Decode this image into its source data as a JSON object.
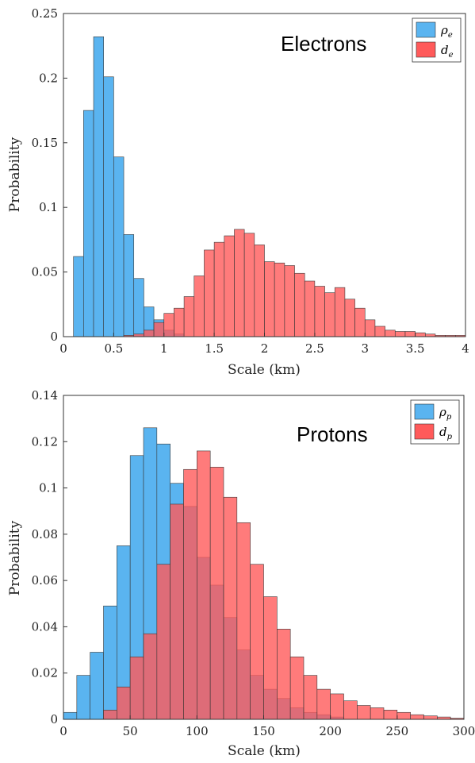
{
  "chart_data": [
    {
      "type": "bar",
      "annotation": "Electrons",
      "xlabel": "Scale (km)",
      "ylabel": "Probability",
      "xlim": [
        0,
        4
      ],
      "ylim": [
        0,
        0.25
      ],
      "xticks": [
        "0",
        "0.5",
        "1",
        "1.5",
        "2",
        "2.5",
        "3",
        "3.5",
        "4"
      ],
      "yticks": [
        "0",
        "0.05",
        "0.1",
        "0.15",
        "0.2",
        "0.25"
      ],
      "bin_width": 0.1,
      "legend_position": "top-right",
      "series": [
        {
          "name": "ρe",
          "label_base": "ρ",
          "label_sub": "e",
          "color": "#5AB4F0",
          "x": [
            0.1,
            0.2,
            0.3,
            0.4,
            0.5,
            0.6,
            0.7,
            0.8,
            0.9,
            1.0,
            1.1
          ],
          "values": [
            0.062,
            0.175,
            0.232,
            0.201,
            0.139,
            0.079,
            0.045,
            0.023,
            0.013,
            0.005,
            0.002
          ]
        },
        {
          "name": "de",
          "label_base": "d",
          "label_sub": "e",
          "color": "#FF5A5A",
          "x": [
            0.6,
            0.7,
            0.8,
            0.9,
            1.0,
            1.1,
            1.2,
            1.3,
            1.4,
            1.5,
            1.6,
            1.7,
            1.8,
            1.9,
            2.0,
            2.1,
            2.2,
            2.3,
            2.4,
            2.5,
            2.6,
            2.7,
            2.8,
            2.9,
            3.0,
            3.1,
            3.2,
            3.3,
            3.4,
            3.5,
            3.6,
            3.7,
            3.8,
            3.9
          ],
          "values": [
            0.001,
            0.002,
            0.005,
            0.011,
            0.018,
            0.022,
            0.031,
            0.047,
            0.067,
            0.073,
            0.078,
            0.083,
            0.08,
            0.071,
            0.058,
            0.057,
            0.055,
            0.049,
            0.043,
            0.039,
            0.034,
            0.038,
            0.029,
            0.022,
            0.013,
            0.008,
            0.005,
            0.004,
            0.004,
            0.003,
            0.002,
            0.001,
            0.001,
            0.001
          ]
        }
      ]
    },
    {
      "type": "bar",
      "annotation": "Protons",
      "xlabel": "Scale (km)",
      "ylabel": "Probability",
      "xlim": [
        0,
        300
      ],
      "ylim": [
        0,
        0.14
      ],
      "xticks": [
        "0",
        "50",
        "100",
        "150",
        "200",
        "250",
        "300"
      ],
      "yticks": [
        "0",
        "0.02",
        "0.04",
        "0.06",
        "0.08",
        "0.1",
        "0.12",
        "0.14"
      ],
      "bin_width": 10,
      "legend_position": "top-right",
      "series": [
        {
          "name": "ρp",
          "label_base": "ρ",
          "label_sub": "p",
          "color": "#5AB4F0",
          "x": [
            0,
            10,
            20,
            30,
            40,
            50,
            60,
            70,
            80,
            90,
            100,
            110,
            120,
            130,
            140,
            150,
            160,
            170,
            180,
            190,
            200
          ],
          "values": [
            0.003,
            0.019,
            0.029,
            0.049,
            0.075,
            0.114,
            0.126,
            0.119,
            0.102,
            0.092,
            0.07,
            0.058,
            0.044,
            0.03,
            0.019,
            0.013,
            0.009,
            0.005,
            0.003,
            0.002,
            0.001
          ]
        },
        {
          "name": "dp",
          "label_base": "d",
          "label_sub": "p",
          "color": "#FF5A5A",
          "x": [
            30,
            40,
            50,
            60,
            70,
            80,
            90,
            100,
            110,
            120,
            130,
            140,
            150,
            160,
            170,
            180,
            190,
            200,
            210,
            220,
            230,
            240,
            250,
            260,
            270,
            280,
            290
          ],
          "values": [
            0.004,
            0.014,
            0.027,
            0.037,
            0.067,
            0.093,
            0.108,
            0.116,
            0.109,
            0.096,
            0.085,
            0.067,
            0.053,
            0.039,
            0.027,
            0.019,
            0.013,
            0.011,
            0.008,
            0.006,
            0.005,
            0.004,
            0.003,
            0.002,
            0.0015,
            0.001,
            0.0005
          ]
        }
      ]
    }
  ]
}
